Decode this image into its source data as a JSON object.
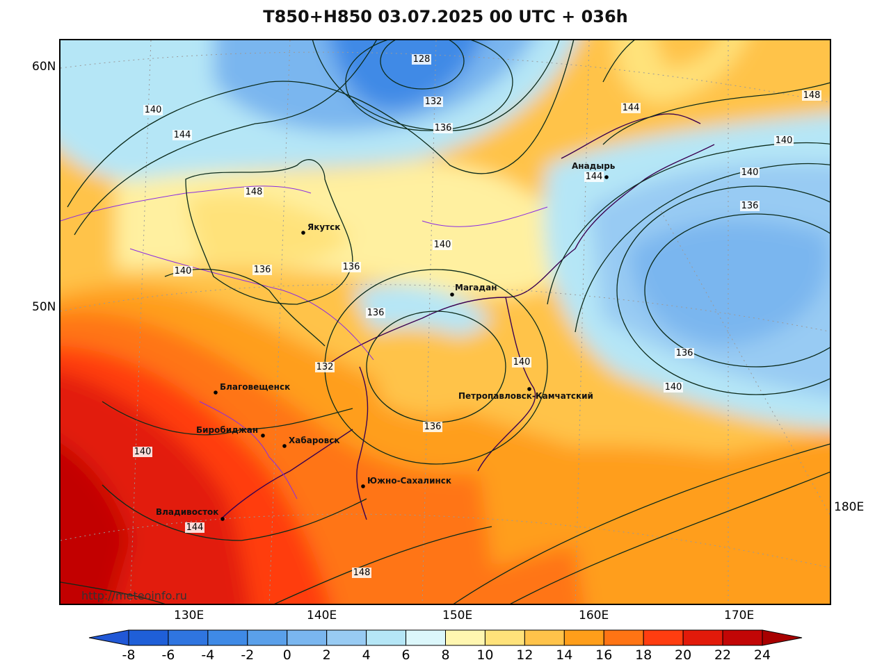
{
  "title": "T850+H850 03.07.2025 00 UTC + 036h",
  "watermark": "http://meteoinfo.ru",
  "lat_labels": [
    "60N",
    "50N"
  ],
  "lon_labels": [
    "130E",
    "140E",
    "150E",
    "160E",
    "170E",
    "180E"
  ],
  "cities": [
    {
      "name": "Якутск"
    },
    {
      "name": "Магадан"
    },
    {
      "name": "Анадырь"
    },
    {
      "name": "Благовещенск"
    },
    {
      "name": "Биробиджан"
    },
    {
      "name": "Хабаровск"
    },
    {
      "name": "Петропавловск-Камчатский"
    },
    {
      "name": "Южно-Сахалинск"
    },
    {
      "name": "Владивосток"
    }
  ],
  "contour_labels": [
    "128",
    "132",
    "136",
    "140",
    "144",
    "148",
    "140",
    "136",
    "136",
    "136",
    "132",
    "136",
    "140",
    "140",
    "136",
    "140",
    "144",
    "140",
    "136",
    "140",
    "144",
    "148",
    "144",
    "140",
    "148"
  ],
  "colorbar": {
    "ticks": [
      "-8",
      "-6",
      "-4",
      "-2",
      "0",
      "2",
      "4",
      "6",
      "8",
      "10",
      "12",
      "14",
      "16",
      "18",
      "20",
      "22",
      "24"
    ],
    "colors": [
      "#1f5fd8",
      "#2f75e0",
      "#3f8ae6",
      "#5aa0ea",
      "#7ab6ef",
      "#98cbf3",
      "#b5e6f6",
      "#dcf7fb",
      "#fff6b0",
      "#ffe27a",
      "#ffc34a",
      "#ff9e1a",
      "#ff7414",
      "#ff3d10",
      "#e21a0a",
      "#c20606"
    ],
    "low_color": "#2158d6",
    "high_color": "#a80000"
  }
}
